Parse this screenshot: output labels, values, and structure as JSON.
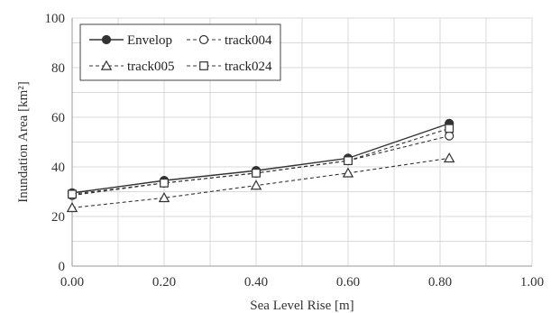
{
  "chart_data": {
    "type": "line",
    "xlabel": "Sea Level Rise [m]",
    "ylabel": "Inundation Area [km²]",
    "xlim": [
      0,
      1.0
    ],
    "ylim": [
      0,
      100
    ],
    "xticks": [
      "0.00",
      "0.20",
      "0.40",
      "0.60",
      "0.80",
      "1.00"
    ],
    "yticks": [
      "0",
      "20",
      "40",
      "60",
      "80",
      "100"
    ],
    "grid": true,
    "legend_position": "top-left",
    "x": [
      0.0,
      0.2,
      0.4,
      0.6,
      0.82
    ],
    "series": [
      {
        "name": "Envelop",
        "values": [
          29.5,
          34.5,
          38.5,
          43.5,
          57.5
        ],
        "line": "solid",
        "marker": "filled-circle",
        "color": "#333333"
      },
      {
        "name": "track004",
        "values": [
          28.5,
          33.5,
          37.5,
          42.5,
          52.5
        ],
        "line": "dashed",
        "marker": "open-circle",
        "color": "#333333"
      },
      {
        "name": "track005",
        "values": [
          23.5,
          27.5,
          32.5,
          37.5,
          43.5
        ],
        "line": "dashed",
        "marker": "open-triangle",
        "color": "#333333"
      },
      {
        "name": "track024",
        "values": [
          29.0,
          33.5,
          37.5,
          42.5,
          55.5
        ],
        "line": "dashed",
        "marker": "open-square",
        "color": "#333333"
      }
    ]
  }
}
